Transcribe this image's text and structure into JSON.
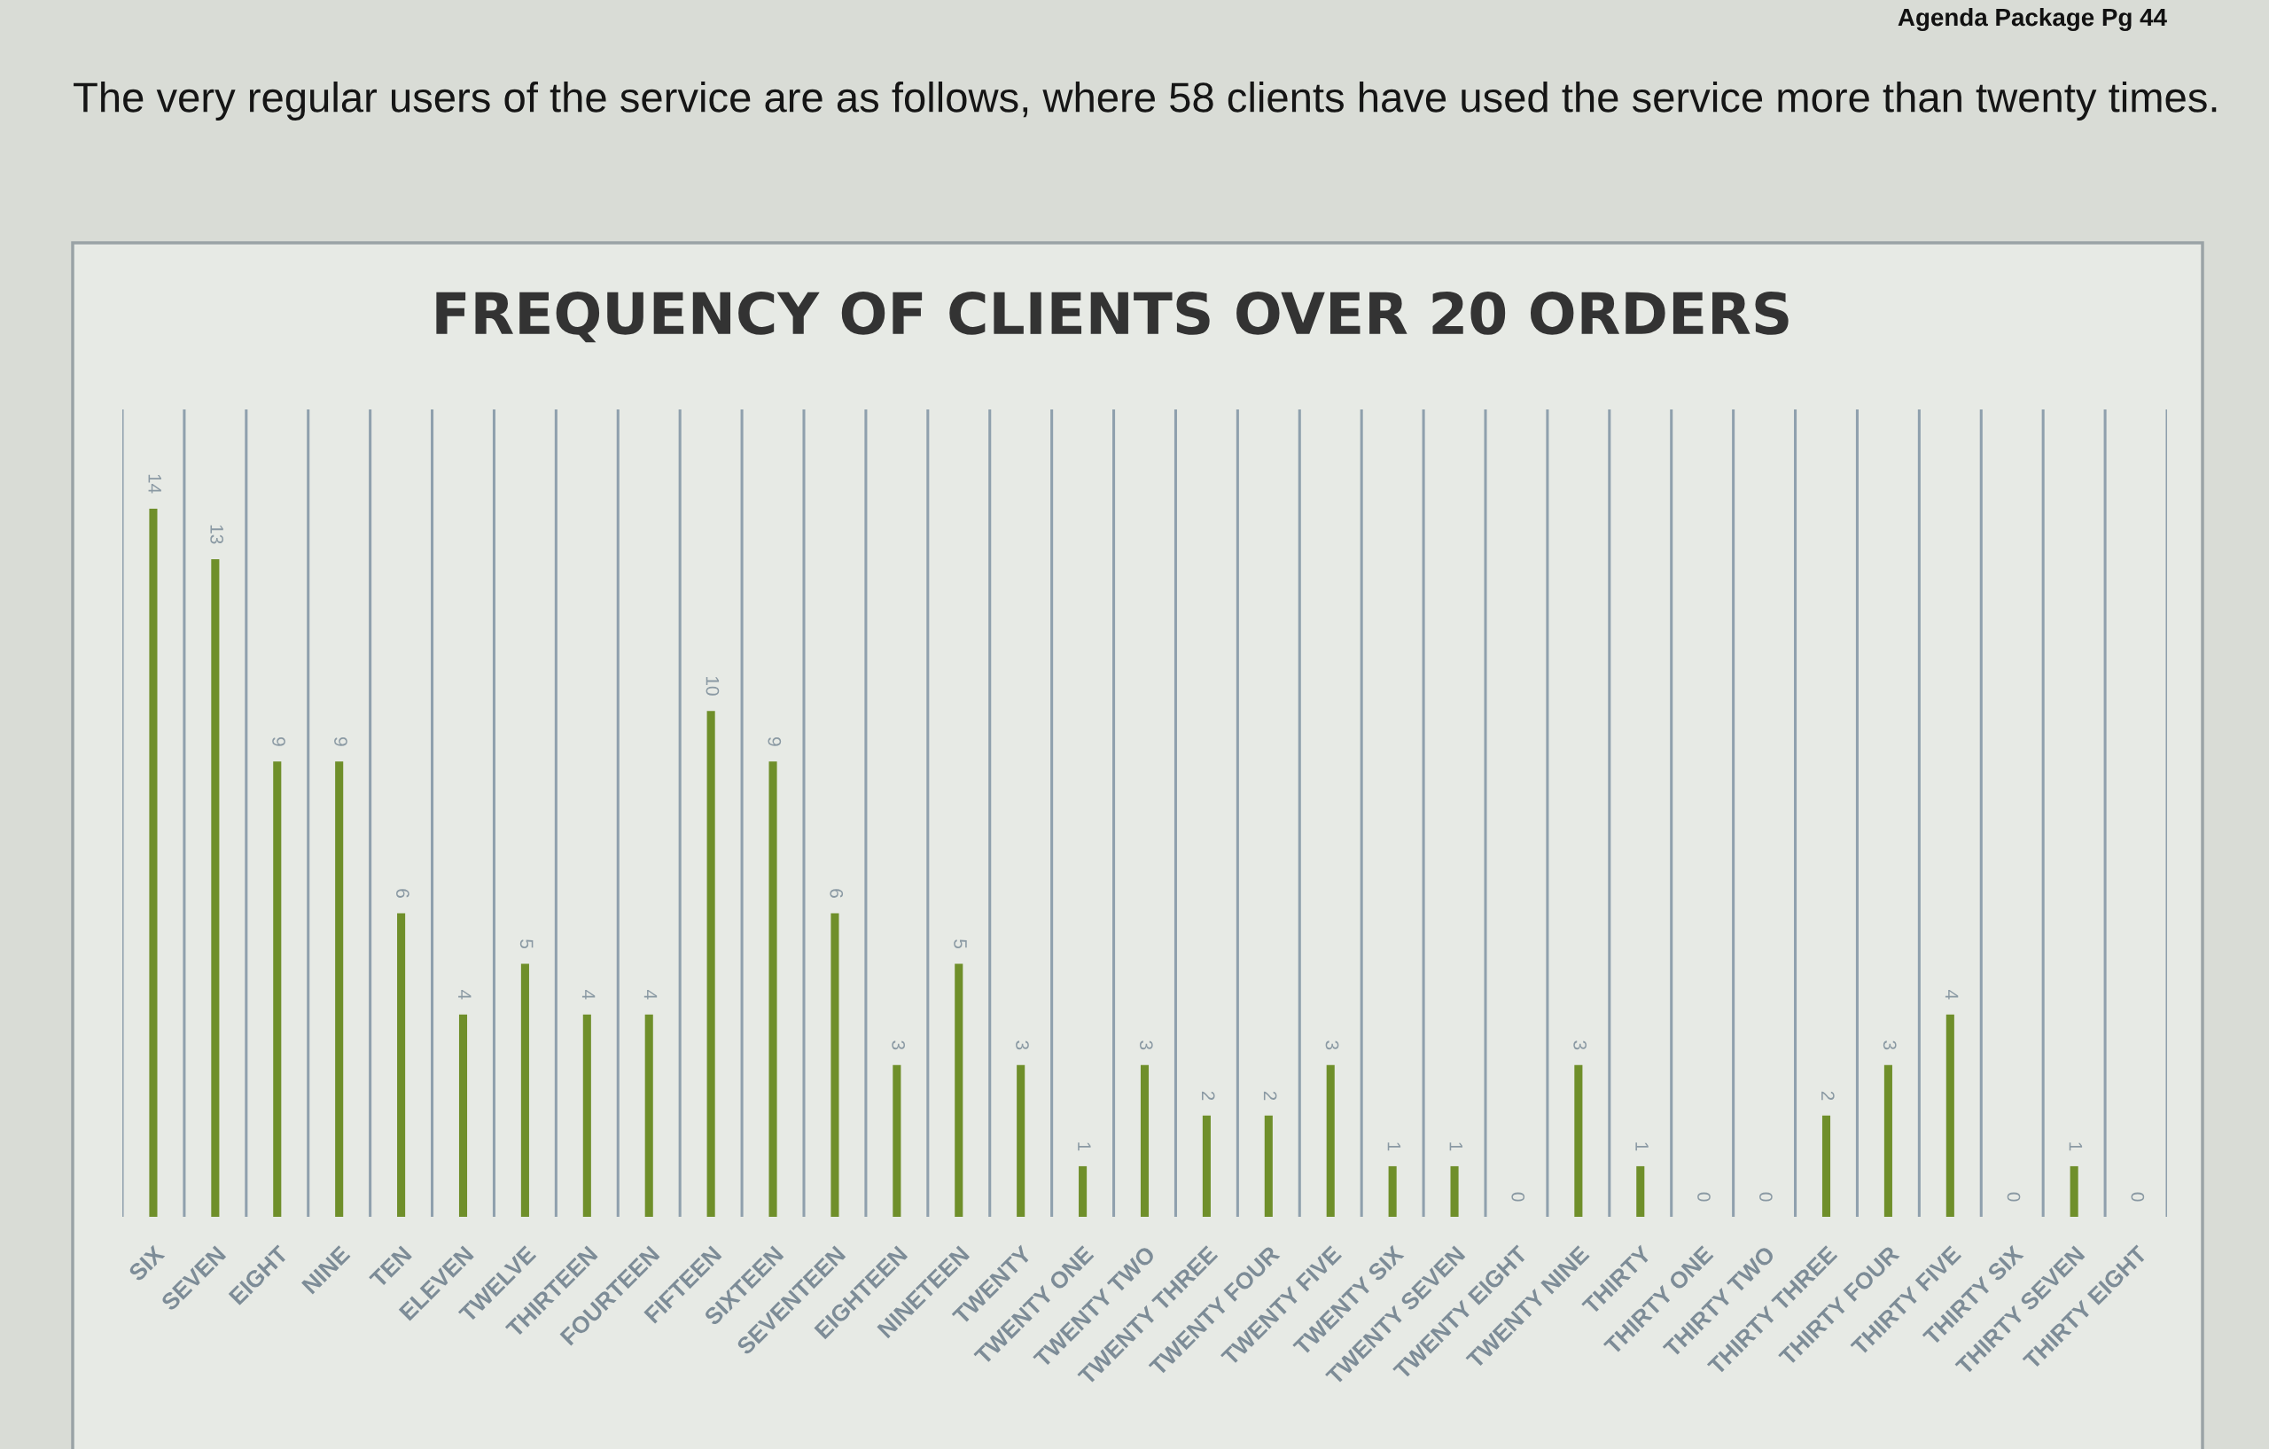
{
  "chart_data": {
    "type": "bar",
    "title": "FREQUENCY OF CLIENTS OVER 20 ORDERS",
    "annotations": [
      "Agenda Package Pg 44",
      "The very regular users of the service are as follows, where 58 clients have used the service more than twenty times."
    ],
    "categories": [
      "SIX",
      "SEVEN",
      "EIGHT",
      "NINE",
      "TEN",
      "ELEVEN",
      "TWELVE",
      "THIRTEEN",
      "FOURTEEN",
      "FIFTEEN",
      "SIXTEEN",
      "SEVENTEEN",
      "EIGHTEEN",
      "NINETEEN",
      "TWENTY",
      "TWENTY ONE",
      "TWENTY TWO",
      "TWENTY THREE",
      "TWENTY FOUR",
      "TWENTY FIVE",
      "TWENTY SIX",
      "TWENTY SEVEN",
      "TWENTY EIGHT",
      "TWENTY NINE",
      "THIRTY",
      "THIRTY ONE",
      "THIRTY TWO",
      "THIRTY THREE",
      "THIRTY FOUR",
      "THIRTY FIVE",
      "THIRTY SIX",
      "THIRTY SEVEN",
      "THIRTY EIGHT"
    ],
    "values": [
      14,
      13,
      9,
      9,
      6,
      4,
      5,
      4,
      4,
      10,
      9,
      6,
      3,
      5,
      3,
      1,
      3,
      2,
      2,
      3,
      1,
      1,
      0,
      3,
      1,
      0,
      0,
      2,
      3,
      4,
      0,
      1,
      0
    ],
    "color": "#6f8f2a",
    "data_labels": true,
    "grid": "x"
  }
}
